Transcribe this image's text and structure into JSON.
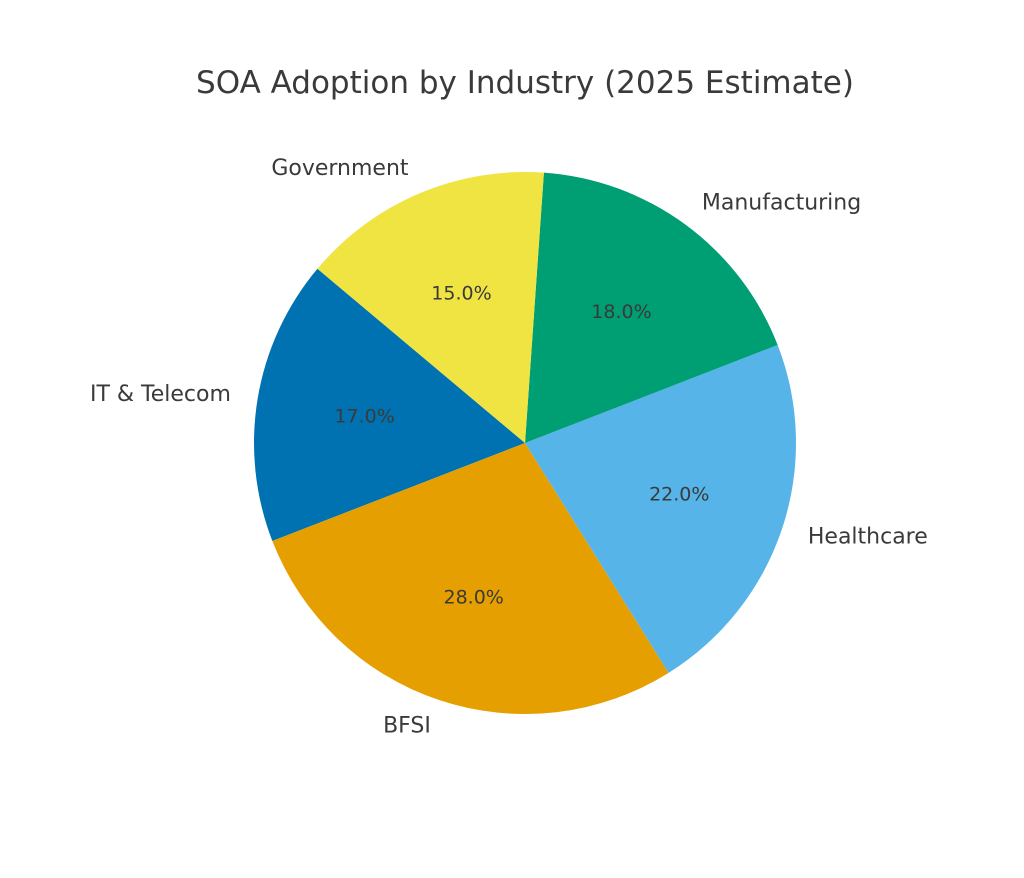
{
  "chart_data": {
    "type": "pie",
    "title": "SOA Adoption by Industry (2025 Estimate)",
    "start_angle_deg": 140,
    "direction": "counterclockwise",
    "slices": [
      {
        "label": "IT & Telecom",
        "value": 17.0,
        "pct_label": "17.0%",
        "color": "#0072B2"
      },
      {
        "label": "BFSI",
        "value": 28.0,
        "pct_label": "28.0%",
        "color": "#E69F00"
      },
      {
        "label": "Healthcare",
        "value": 22.0,
        "pct_label": "22.0%",
        "color": "#56B4E9"
      },
      {
        "label": "Manufacturing",
        "value": 18.0,
        "pct_label": "18.0%",
        "color": "#009E73"
      },
      {
        "label": "Government",
        "value": 15.0,
        "pct_label": "15.0%",
        "color": "#F0E442"
      }
    ]
  }
}
